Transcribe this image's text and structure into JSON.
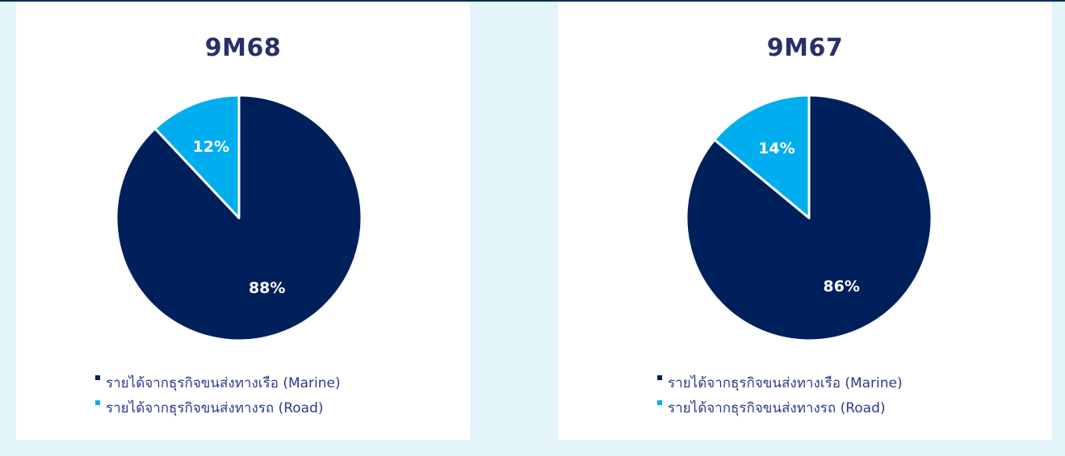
{
  "colors": {
    "marine": "#00205b",
    "road": "#00aeef",
    "slice_border": "#ffffff",
    "title": "#2a2f6b",
    "legend_text": "#2e3a8c"
  },
  "chart_data": [
    {
      "type": "pie",
      "title": "9M68",
      "slices": [
        {
          "label": "รายได้จากธุรกิจขนส่งทางเรือ (Marine)",
          "value": 88,
          "display": "88%",
          "color": "#00205b"
        },
        {
          "label": "รายได้จากธุรกิจขนส่งทางรถ (Road)",
          "value": 12,
          "display": "12%",
          "color": "#00aeef"
        }
      ],
      "legend_placement": "bottom"
    },
    {
      "type": "pie",
      "title": "9M67",
      "slices": [
        {
          "label": "รายได้จากธุรกิจขนส่งทางเรือ (Marine)",
          "value": 86,
          "display": "86%",
          "color": "#00205b"
        },
        {
          "label": "รายได้จากธุรกิจขนส่งทางรถ (Road)",
          "value": 14,
          "display": "14%",
          "color": "#00aeef"
        }
      ],
      "legend_placement": "bottom"
    }
  ]
}
